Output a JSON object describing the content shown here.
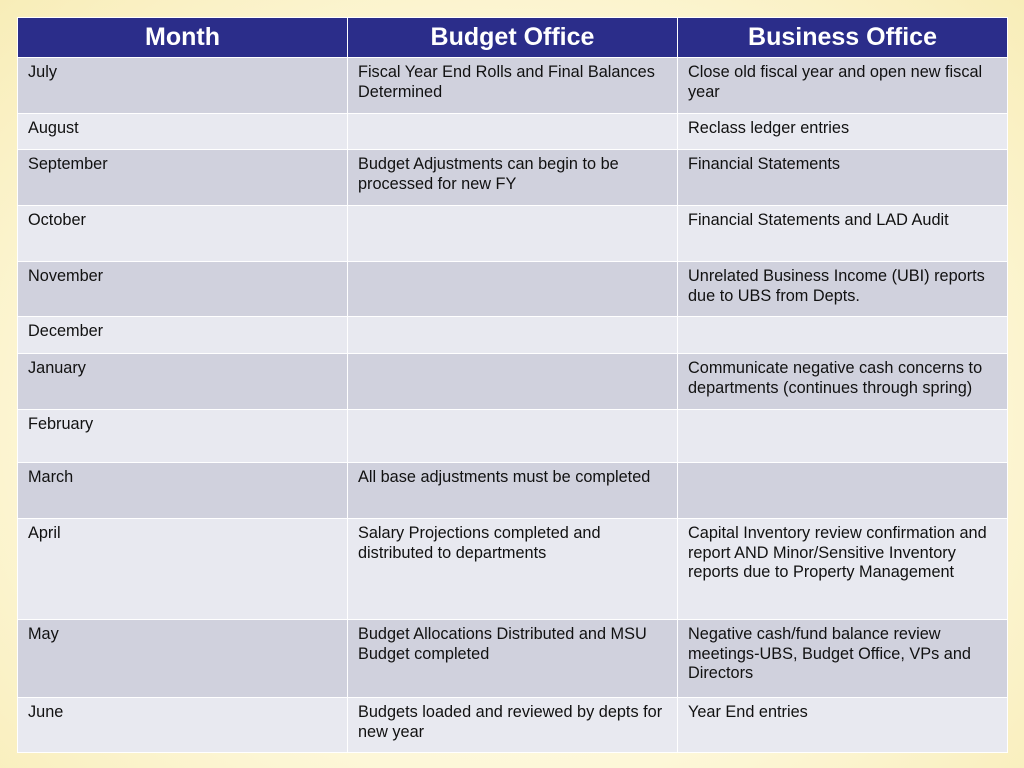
{
  "table": {
    "headers": [
      "Month",
      "Budget Office",
      "Business Office"
    ],
    "rows": [
      {
        "month": "July",
        "budget": "Fiscal Year End Rolls and Final Balances Determined",
        "business": "Close old fiscal year and open new fiscal year"
      },
      {
        "month": "August",
        "budget": "",
        "business": "Reclass ledger entries"
      },
      {
        "month": "September",
        "budget": "Budget Adjustments can begin to be processed for new FY",
        "business": "Financial Statements"
      },
      {
        "month": "October",
        "budget": "",
        "business": "Financial Statements and LAD Audit"
      },
      {
        "month": "November",
        "budget": "",
        "business": "Unrelated Business Income (UBI) reports due to UBS from Depts."
      },
      {
        "month": "December",
        "budget": "",
        "business": ""
      },
      {
        "month": "January",
        "budget": "",
        "business": "Communicate negative cash concerns to departments (continues through spring)"
      },
      {
        "month": "February",
        "budget": "",
        "business": ""
      },
      {
        "month": "March",
        "budget": "All base adjustments must be completed",
        "business": ""
      },
      {
        "month": "April",
        "budget": "Salary Projections completed and distributed to departments",
        "business": "Capital Inventory review confirmation and report AND Minor/Sensitive Inventory reports due to Property Management"
      },
      {
        "month": "May",
        "budget": "Budget Allocations Distributed and MSU Budget completed",
        "business": "Negative cash/fund balance review meetings-UBS, Budget Office, VPs and Directors"
      },
      {
        "month": "June",
        "budget": "Budgets loaded and reviewed by depts for new year",
        "business": "Year End entries"
      }
    ]
  },
  "colors": {
    "header_bg": "#2b2d8a",
    "row_dark": "#d0d1dd",
    "row_light": "#e8e9f0"
  }
}
